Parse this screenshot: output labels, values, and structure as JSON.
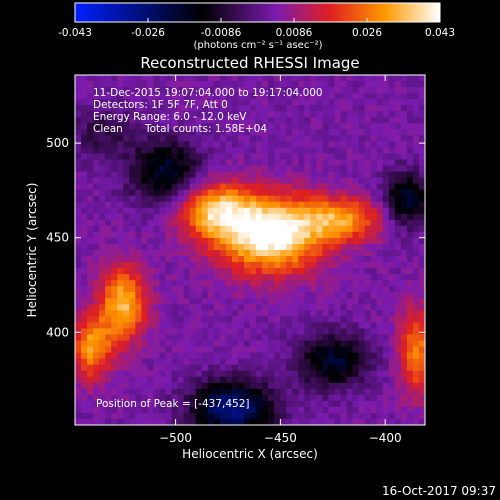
{
  "chart_data": {
    "type": "heatmap",
    "title": "Reconstructed RHESSI Image",
    "xlabel": "Heliocentric X (arcsec)",
    "ylabel": "Heliocentric Y (arcsec)",
    "xlim": [
      -548,
      -381
    ],
    "ylim": [
      351,
      536
    ],
    "x_ticks": [
      -500,
      -450,
      -400
    ],
    "y_ticks": [
      400,
      450,
      500
    ],
    "colorbar": {
      "min": -0.043,
      "max": 0.043,
      "ticks": [
        "-0.043",
        "-0.026",
        "-0.0086",
        "0.0086",
        "0.026",
        "0.043"
      ],
      "unit_label": "(photons cm⁻² s⁻¹ asec⁻²)",
      "colormap": [
        "#0020ff",
        "#000000",
        "#7a1bb0",
        "#e02020",
        "#ff9a00",
        "#ffffff"
      ]
    },
    "annotations": {
      "time_range": "11-Dec-2015 19:07:04.000 to 19:17:04.000",
      "detectors": "Detectors: 1F 5F 7F, Att 0",
      "energy": "Energy Range: 6.0 - 12.0 keV",
      "method": "Clean",
      "counts": "Total counts: 1.58E+04",
      "peak": "Position of Peak = [-437,452]"
    },
    "peak_position": [
      -437,
      452
    ],
    "sources": [
      {
        "x": -455,
        "y": 452,
        "sx": 18,
        "sy": 14,
        "amp": 0.043
      },
      {
        "x": -482,
        "y": 465,
        "sx": 12,
        "sy": 10,
        "amp": 0.028
      },
      {
        "x": -420,
        "y": 460,
        "sx": 14,
        "sy": 8,
        "amp": 0.024
      },
      {
        "x": -525,
        "y": 415,
        "sx": 8,
        "sy": 14,
        "amp": 0.03
      },
      {
        "x": -540,
        "y": 392,
        "sx": 7,
        "sy": 12,
        "amp": 0.026
      },
      {
        "x": -385,
        "y": 390,
        "sx": 6,
        "sy": 16,
        "amp": 0.024
      },
      {
        "x": -473,
        "y": 360,
        "sx": 14,
        "sy": 10,
        "amp": -0.032
      },
      {
        "x": -505,
        "y": 485,
        "sx": 12,
        "sy": 12,
        "amp": -0.022
      },
      {
        "x": -425,
        "y": 385,
        "sx": 12,
        "sy": 10,
        "amp": -0.022
      },
      {
        "x": -390,
        "y": 470,
        "sx": 8,
        "sy": 10,
        "amp": -0.022
      },
      {
        "x": -535,
        "y": 505,
        "sx": 10,
        "sy": 10,
        "amp": -0.01
      }
    ]
  },
  "footer": {
    "timestamp": "16-Oct-2017 09:37"
  }
}
